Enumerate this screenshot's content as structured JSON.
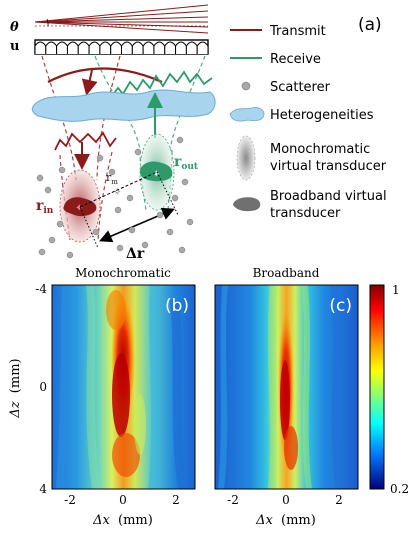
{
  "figure": {
    "panel_a": {
      "label": "(a)",
      "theta_symbol": "θ",
      "u_symbol": "u",
      "r_in_symbol": "r",
      "r_in_sub": "in",
      "r_out_symbol": "r",
      "r_out_sub": "out",
      "r_m_symbol": "r",
      "r_m_sub": "m",
      "delta_r_symbol": "Δr"
    },
    "legend": [
      {
        "key": "transmit",
        "label": "Transmit",
        "color": "#8b1a1a"
      },
      {
        "key": "receive",
        "label": "Receive",
        "color": "#2e9a6b"
      },
      {
        "key": "scatterer",
        "label": "Scatterer",
        "color": "#a8a8a8"
      },
      {
        "key": "heterogeneities",
        "label": "Heterogeneities",
        "color": "#a9d4ee"
      },
      {
        "key": "monochromatic",
        "label_lines": [
          "Monochromatic",
          "virtual transducer"
        ],
        "color": "#c8c8c8"
      },
      {
        "key": "broadband",
        "label_lines": [
          "Broadband virtual",
          "transducer"
        ],
        "color": "#707070"
      }
    ],
    "panel_b": {
      "title": "Monochromatic",
      "label": "(b)"
    },
    "panel_c": {
      "title": "Broadband",
      "label": "(c)"
    },
    "y_axis_label": "Δz",
    "y_axis_unit": "(mm)",
    "x_axis_label": "Δx",
    "x_axis_unit": "(mm)",
    "y_ticks": [
      "-4",
      "0",
      "4"
    ],
    "x_ticks": [
      "-2",
      "0",
      "2"
    ],
    "colorbar_ticks": [
      "1",
      "0.2"
    ]
  }
}
